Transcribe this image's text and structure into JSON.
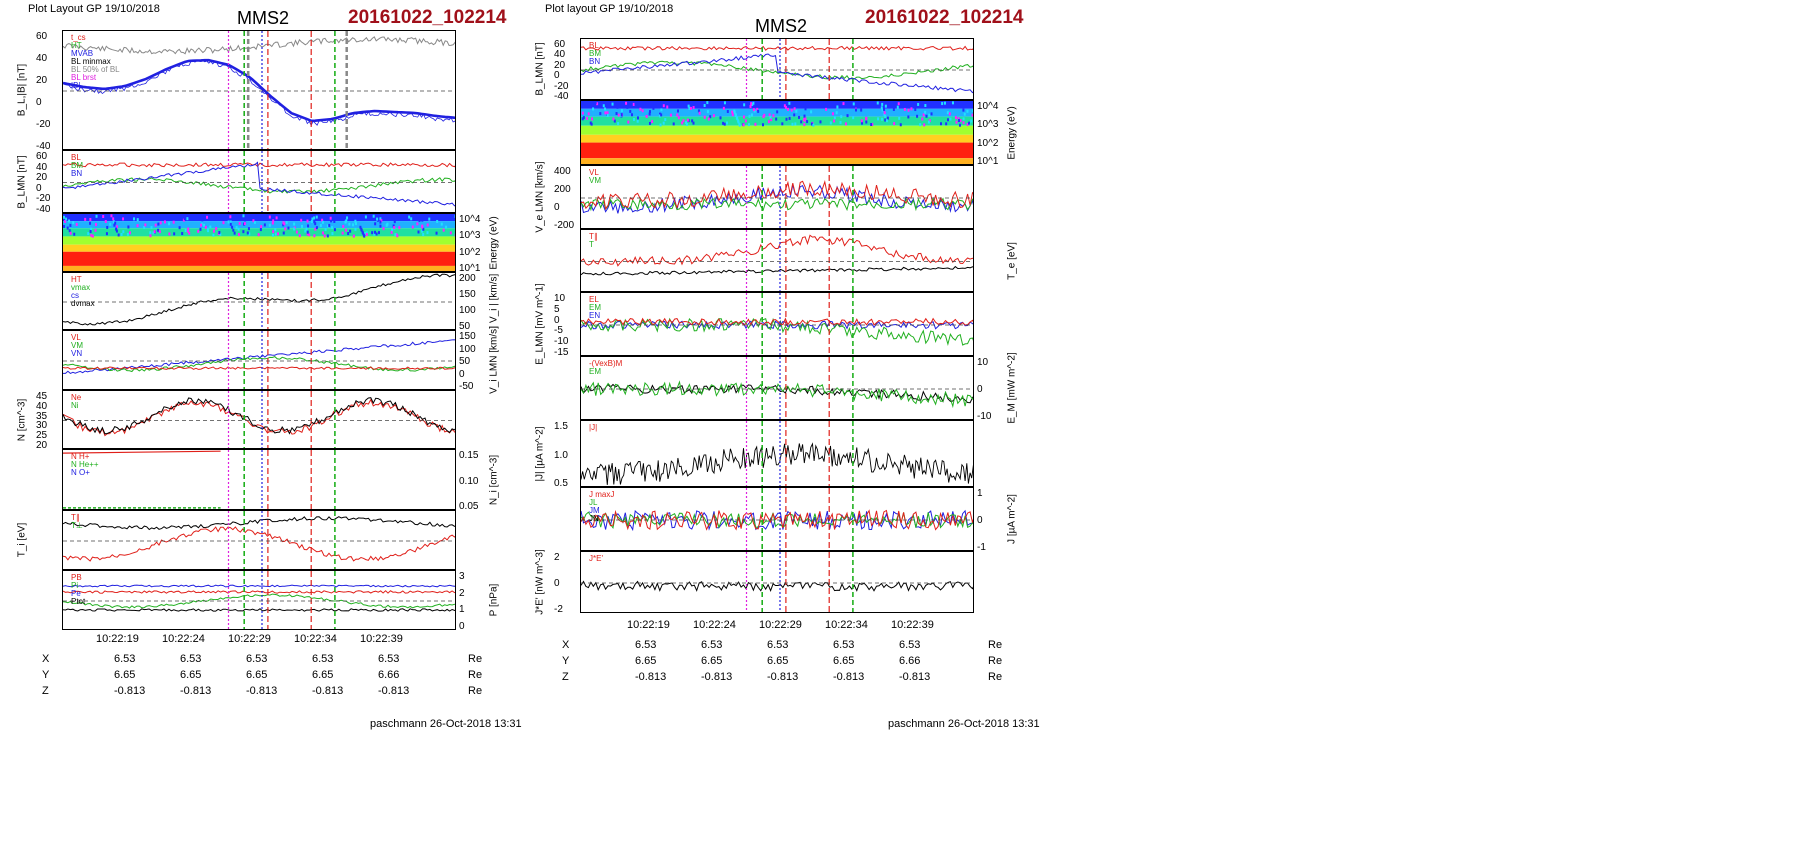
{
  "left": {
    "layout_label": "Plot Layout GP 19/10/2018",
    "satellite": "MMS2",
    "event": "20161022_102214",
    "footer": "paschmann 26-Oct-2018 13:31",
    "time_ticks": [
      "10:22:19",
      "10:22:24",
      "10:22:29",
      "10:22:34",
      "10:22:39"
    ],
    "position_table": [
      {
        "axis": "X",
        "values": [
          "6.53",
          "6.53",
          "6.53",
          "6.53",
          "6.53"
        ],
        "unit": "Re"
      },
      {
        "axis": "Y",
        "values": [
          "6.65",
          "6.65",
          "6.65",
          "6.65",
          "6.66"
        ],
        "unit": "Re"
      },
      {
        "axis": "Z",
        "values": [
          "-0.813",
          "-0.813",
          "-0.813",
          "-0.813",
          "-0.813"
        ],
        "unit": "Re"
      }
    ],
    "panels": [
      {
        "ylabel": "B_L,|B| [nT]",
        "ticks": [
          "60",
          "40",
          "20",
          "0",
          "-20",
          "-40"
        ],
        "legend": [
          "t_cs",
          "HT",
          "MVAB",
          "BL minmax",
          "BL 50% of BL",
          "BL brst",
          "|B|"
        ]
      },
      {
        "ylabel": "B_LMN [nT]",
        "ticks": [
          "60",
          "40",
          "20",
          "0",
          "-20",
          "-40"
        ],
        "legend": [
          "BL",
          "BM",
          "BN"
        ]
      },
      {
        "ylabel": "Energy (eV)",
        "ticks": [
          "10^4",
          "10^3",
          "10^2",
          "10^1"
        ],
        "legend": []
      },
      {
        "ylabel": "| V_i | [km/s]",
        "ticks": [
          "200",
          "150",
          "100",
          "50"
        ],
        "legend": [
          "HT",
          "vmax",
          "cs",
          "dvmax"
        ]
      },
      {
        "ylabel": "V_i LMN [km/s]",
        "ticks": [
          "150",
          "100",
          "50",
          "0",
          "-50"
        ],
        "legend": [
          "VL",
          "VM",
          "VN"
        ]
      },
      {
        "ylabel": "N [cm^-3]",
        "ticks": [
          "45",
          "40",
          "35",
          "30",
          "25",
          "20"
        ],
        "legend": [
          "Ne",
          "Ni"
        ]
      },
      {
        "ylabel": "N_i [cm^-3]",
        "ticks": [
          "0.15",
          "0.10",
          "0.05"
        ],
        "legend": [
          "N H+",
          "N He++",
          "N O+"
        ]
      },
      {
        "ylabel": "T_i [eV]",
        "ticks": [],
        "legend": [
          "T∥",
          "T⊥"
        ]
      },
      {
        "ylabel": "P [nPa]",
        "ticks": [
          "3",
          "2",
          "1",
          "0"
        ],
        "legend": [
          "PB",
          "Pi",
          "Pe",
          "Ptot"
        ]
      }
    ]
  },
  "right": {
    "layout_label": "Plot layout GP 19/10/2018",
    "satellite": "MMS2",
    "event": "20161022_102214",
    "footer": "paschmann 26-Oct-2018 13:31",
    "time_ticks": [
      "10:22:19",
      "10:22:24",
      "10:22:29",
      "10:22:34",
      "10:22:39"
    ],
    "position_table": [
      {
        "axis": "X",
        "values": [
          "6.53",
          "6.53",
          "6.53",
          "6.53",
          "6.53"
        ],
        "unit": "Re"
      },
      {
        "axis": "Y",
        "values": [
          "6.65",
          "6.65",
          "6.65",
          "6.65",
          "6.66"
        ],
        "unit": "Re"
      },
      {
        "axis": "Z",
        "values": [
          "-0.813",
          "-0.813",
          "-0.813",
          "-0.813",
          "-0.813"
        ],
        "unit": "Re"
      }
    ],
    "panels": [
      {
        "ylabel": "B_LMN [nT]",
        "ticks": [
          "60",
          "40",
          "20",
          "0",
          "-20",
          "-40"
        ],
        "legend": [
          "BL",
          "BM",
          "BN"
        ]
      },
      {
        "ylabel": "Energy (eV)",
        "ticks": [
          "10^4",
          "10^3",
          "10^2",
          "10^1"
        ],
        "legend": []
      },
      {
        "ylabel": "V_e LMN [km/s]",
        "ticks": [
          "400",
          "200",
          "0",
          "-200"
        ],
        "legend": [
          "VL",
          "VM"
        ]
      },
      {
        "ylabel": "T_e [eV]",
        "ticks": [],
        "legend": [
          "T∥",
          "T"
        ]
      },
      {
        "ylabel": "E_LMN [mV m^-1]",
        "ticks": [
          "10",
          "5",
          "0",
          "-5",
          "-10",
          "-15"
        ],
        "legend": [
          "EL",
          "EM",
          "EN"
        ]
      },
      {
        "ylabel": "E_M [mW m^-2]",
        "ticks": [
          "10",
          "0",
          "-10"
        ],
        "legend": [
          "-(VexB)M",
          "EM"
        ]
      },
      {
        "ylabel": "|J| [µA m^-2]",
        "ticks": [
          "1.5",
          "1.0",
          "0.5"
        ],
        "legend": [
          "|J|"
        ]
      },
      {
        "ylabel": "J [µA m^-2]",
        "ticks": [
          "1",
          "0",
          "-1"
        ],
        "legend": [
          "J maxJ",
          "JL",
          "JM",
          "JN"
        ]
      },
      {
        "ylabel": "J*E' [nW m^-3]",
        "ticks": [
          "2",
          "0",
          "-2"
        ],
        "legend": [
          "J*E'"
        ]
      }
    ]
  },
  "colors": {
    "red": "#e0201a",
    "green": "#21b020",
    "blue": "#2020e0",
    "magenta": "#e020e0",
    "black": "#000000",
    "gray": "#888888",
    "event": "#a0101a"
  },
  "chart_data": {
    "type": "line",
    "x_range": [
      "10:22:14",
      "10:22:43"
    ],
    "title": "MMS2 20161022_102214",
    "series": [
      {
        "name": "BL",
        "values": [
          8,
          4,
          2,
          5,
          12,
          22,
          30,
          31,
          26,
          14,
          -5,
          -22,
          -30,
          -28,
          -22,
          -20,
          -21,
          -22,
          -25,
          -27
        ]
      }
    ]
  }
}
